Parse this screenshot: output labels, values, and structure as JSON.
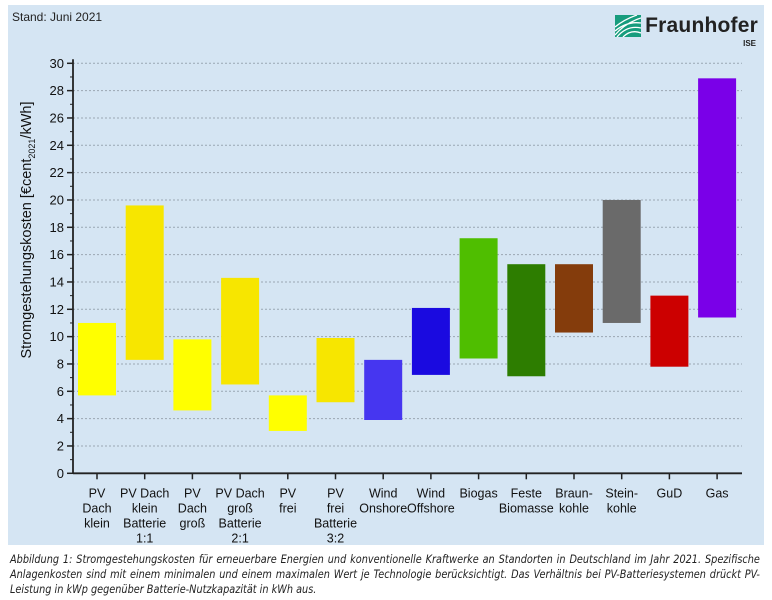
{
  "stand": "Stand: Juni 2021",
  "logo": {
    "name": "Fraunhofer",
    "sub": "ISE",
    "color": "#179c7d"
  },
  "caption": "Abbildung 1: Stromgestehungskosten für erneuerbare Energien und konventionelle Kraftwerke an Standorten in Deutschland im Jahr 2021. Spezifische Anlagenkosten sind mit einem minimalen und einem maximalen Wert je Technologie berücksichtigt. Das Verhältnis bei PV-Batteriesystemen drückt PV-Leistung in kWp gegenüber Batterie-Nutzkapazität in kWh aus.",
  "chart_data": {
    "type": "bar",
    "subtype": "floating-range",
    "ylabel": {
      "main": "Stromgestehungskosten [€cent",
      "sub": "2021",
      "end": "/kWh]"
    },
    "ylim": [
      0,
      30
    ],
    "yticks": [
      0,
      2,
      4,
      6,
      8,
      10,
      12,
      14,
      16,
      18,
      20,
      22,
      24,
      26,
      28,
      30
    ],
    "grid": true,
    "categories": [
      [
        "PV",
        "Dach",
        "klein"
      ],
      [
        "PV Dach",
        "klein",
        "Batterie",
        "1:1"
      ],
      [
        "PV",
        "Dach",
        "groß"
      ],
      [
        "PV Dach",
        "groß",
        "Batterie",
        "2:1"
      ],
      [
        "PV",
        "frei"
      ],
      [
        "PV",
        "frei",
        "Batterie",
        "3:2"
      ],
      [
        "Wind",
        "Onshore"
      ],
      [
        "Wind",
        "Offshore"
      ],
      [
        "Biogas"
      ],
      [
        "Feste",
        "Biomasse"
      ],
      [
        "Braun-",
        "kohle"
      ],
      [
        "Stein-",
        "kohle"
      ],
      [
        "GuD"
      ],
      [
        "Gas"
      ]
    ],
    "min": [
      5.7,
      8.3,
      4.6,
      6.5,
      3.1,
      5.2,
      3.9,
      7.2,
      8.4,
      7.1,
      10.3,
      11.0,
      7.8,
      11.4
    ],
    "max": [
      11.0,
      19.6,
      9.8,
      14.3,
      5.7,
      9.9,
      8.3,
      12.1,
      17.2,
      15.3,
      15.3,
      20.0,
      13.0,
      28.9
    ],
    "colors": [
      "#ffff00",
      "#f7e600",
      "#ffff00",
      "#f7e600",
      "#ffff00",
      "#f7e600",
      "#4636f0",
      "#1a0ae0",
      "#4fbe00",
      "#2d7d00",
      "#843c0c",
      "#6a6a6a",
      "#cc0000",
      "#7a00e8"
    ]
  }
}
